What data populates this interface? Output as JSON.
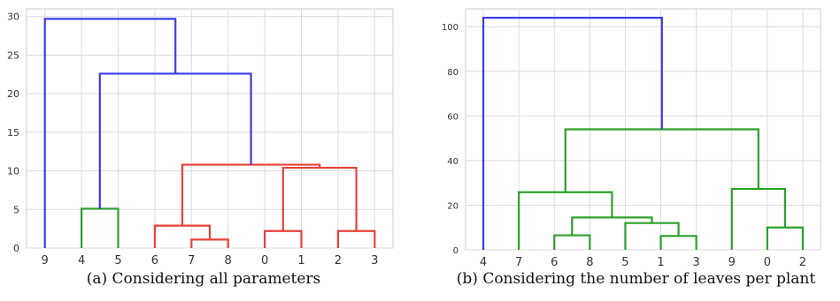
{
  "panels": [
    {
      "caption": "(a) Considering all parameters",
      "chart_data": {
        "type": "dendrogram",
        "title": "",
        "xlabel": "",
        "ylabel": "",
        "ylim": [
          0,
          31
        ],
        "yticks": [
          0,
          5,
          10,
          15,
          20,
          25,
          30
        ],
        "leaf_order": [
          "9",
          "4",
          "5",
          "6",
          "7",
          "8",
          "0",
          "1",
          "2",
          "3"
        ],
        "grid": true,
        "merges": [
          {
            "left": "4",
            "right": "5",
            "height": 5.1,
            "color": "#2ca02c"
          },
          {
            "left": "7",
            "right": "8",
            "height": 1.1,
            "color": "#e8413c"
          },
          {
            "left": "6",
            "right": "(7,8)",
            "height": 2.9,
            "color": "#e8413c"
          },
          {
            "left": "0",
            "right": "1",
            "height": 2.2,
            "color": "#e8413c"
          },
          {
            "left": "2",
            "right": "3",
            "height": 2.2,
            "color": "#e8413c"
          },
          {
            "left": "(0,1)",
            "right": "(2,3)",
            "height": 10.4,
            "color": "#e8413c"
          },
          {
            "left": "(6,7,8)",
            "right": "(0,1,2,3)",
            "height": 10.8,
            "color": "#e8413c"
          },
          {
            "left": "(4,5)",
            "right": "(6,7,8,0,1,2,3)",
            "height": 22.6,
            "color": "#3b3bea"
          },
          {
            "left": "9",
            "right": "(4,5,6,7,8,0,1,2,3)",
            "height": 29.7,
            "color": "#3b3bea"
          }
        ]
      }
    },
    {
      "caption": "(b) Considering the number of leaves per plant",
      "chart_data": {
        "type": "dendrogram",
        "title": "",
        "xlabel": "",
        "ylabel": "",
        "ylim": [
          0,
          108
        ],
        "yticks": [
          0,
          20,
          40,
          60,
          80,
          100
        ],
        "leaf_order": [
          "4",
          "7",
          "6",
          "8",
          "5",
          "1",
          "3",
          "9",
          "0",
          "2"
        ],
        "grid": true,
        "merges": [
          {
            "left": "6",
            "right": "8",
            "height": 6.5,
            "color": "#2ca02c"
          },
          {
            "left": "1",
            "right": "3",
            "height": 6.2,
            "color": "#2ca02c"
          },
          {
            "left": "5",
            "right": "(1,3)",
            "height": 12.0,
            "color": "#2ca02c"
          },
          {
            "left": "(6,8)",
            "right": "(5,1,3)",
            "height": 14.5,
            "color": "#2ca02c"
          },
          {
            "left": "7",
            "right": "(6,8,5,1,3)",
            "height": 25.8,
            "color": "#2ca02c"
          },
          {
            "left": "0",
            "right": "2",
            "height": 10.0,
            "color": "#2ca02c"
          },
          {
            "left": "9",
            "right": "(0,2)",
            "height": 27.3,
            "color": "#2ca02c"
          },
          {
            "left": "(7,6,8,5,1,3)",
            "right": "(9,0,2)",
            "height": 54.0,
            "color": "#2ca02c"
          },
          {
            "left": "4",
            "right": "(7,6,8,5,1,3,9,0,2)",
            "height": 104.0,
            "color": "#3b3bea"
          }
        ]
      }
    }
  ]
}
